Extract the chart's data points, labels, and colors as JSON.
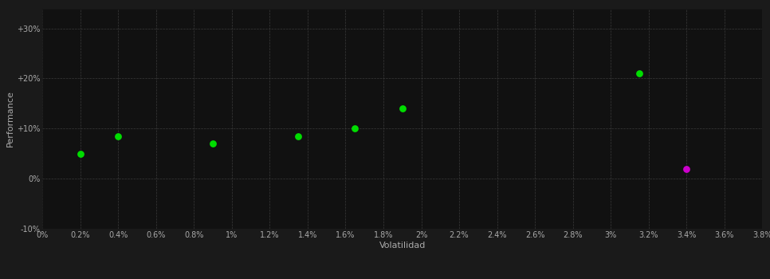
{
  "green_points": [
    [
      0.002,
      0.05
    ],
    [
      0.004,
      0.085
    ],
    [
      0.009,
      0.07
    ],
    [
      0.0135,
      0.085
    ],
    [
      0.0165,
      0.1
    ],
    [
      0.019,
      0.14
    ],
    [
      0.0315,
      0.21
    ]
  ],
  "magenta_point": [
    0.034,
    0.02
  ],
  "green_color": "#00dd00",
  "magenta_color": "#cc00cc",
  "bg_color": "#1a1a1a",
  "plot_bg_color": "#111111",
  "grid_color": "#3a3a3a",
  "text_color": "#aaaaaa",
  "xlabel": "Volatilidad",
  "ylabel": "Performance",
  "xlim": [
    0.0,
    0.038
  ],
  "ylim": [
    -0.1,
    0.34
  ],
  "xticks": [
    0.0,
    0.002,
    0.004,
    0.006,
    0.008,
    0.01,
    0.012,
    0.014,
    0.016,
    0.018,
    0.02,
    0.022,
    0.024,
    0.026,
    0.028,
    0.03,
    0.032,
    0.034,
    0.036,
    0.038
  ],
  "yticks": [
    -0.1,
    0.0,
    0.1,
    0.2,
    0.3
  ],
  "ytick_labels": [
    "-10%",
    "0%",
    "+10%",
    "+20%",
    "+30%"
  ],
  "xtick_labels": [
    "0%",
    "0.2%",
    "0.4%",
    "0.6%",
    "0.8%",
    "1%",
    "1.2%",
    "1.4%",
    "1.6%",
    "1.8%",
    "2%",
    "2.2%",
    "2.4%",
    "2.6%",
    "2.8%",
    "3%",
    "3.2%",
    "3.4%",
    "3.6%",
    "3.8%"
  ],
  "marker_size": 40,
  "figsize": [
    9.66,
    3.5
  ],
  "dpi": 100
}
